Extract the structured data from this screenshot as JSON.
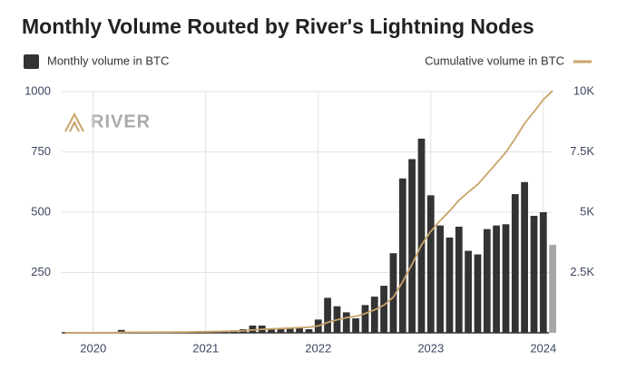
{
  "chart_data": {
    "type": "bar_line",
    "title": "Monthly Volume Routed by River's Lightning Nodes",
    "logo": "RIVER",
    "legend": "top",
    "grid": true,
    "x": [
      2019.75,
      2019.833,
      2019.917,
      2020,
      2020.083,
      2020.167,
      2020.25,
      2020.333,
      2020.417,
      2020.5,
      2020.583,
      2020.667,
      2020.75,
      2020.833,
      2020.917,
      2021,
      2021.083,
      2021.167,
      2021.25,
      2021.333,
      2021.417,
      2021.5,
      2021.583,
      2021.667,
      2021.75,
      2021.833,
      2021.917,
      2022,
      2022.083,
      2022.167,
      2022.25,
      2022.333,
      2022.417,
      2022.5,
      2022.583,
      2022.667,
      2022.75,
      2022.833,
      2022.917,
      2023,
      2023.083,
      2023.167,
      2023.25,
      2023.333,
      2023.417,
      2023.5,
      2023.583,
      2023.667,
      2023.75,
      2023.833,
      2023.917,
      2024,
      2024.083
    ],
    "xlim": [
      2019.72,
      2024.05
    ],
    "xticks": [
      2020,
      2021,
      2022,
      2023,
      2024
    ],
    "ylim": [
      0,
      1000
    ],
    "yticks": [
      250,
      500,
      750,
      1000
    ],
    "y2lim": [
      0,
      10000
    ],
    "y2ticks": [
      {
        "value": 2500,
        "label": "2.5K"
      },
      {
        "value": 5000,
        "label": "5K"
      },
      {
        "value": 7500,
        "label": "7.5K"
      },
      {
        "value": 10000,
        "label": "10K"
      }
    ],
    "series": [
      {
        "name": "Monthly volume in BTC",
        "color": "#333333",
        "colors": [
          "#333333",
          "#333333",
          "#333333",
          "#333333",
          "#333333",
          "#333333",
          "#333333",
          "#333333",
          "#333333",
          "#333333",
          "#333333",
          "#333333",
          "#333333",
          "#333333",
          "#333333",
          "#333333",
          "#333333",
          "#333333",
          "#333333",
          "#333333",
          "#333333",
          "#333333",
          "#333333",
          "#333333",
          "#333333",
          "#333333",
          "#333333",
          "#333333",
          "#333333",
          "#333333",
          "#333333",
          "#333333",
          "#333333",
          "#333333",
          "#333333",
          "#333333",
          "#333333",
          "#333333",
          "#333333",
          "#333333",
          "#333333",
          "#333333",
          "#333333",
          "#333333",
          "#333333",
          "#333333",
          "#333333",
          "#333333",
          "#333333",
          "#333333",
          "#333333",
          "#333333",
          "#a6a6a6"
        ],
        "values": [
          2,
          1,
          1,
          1,
          1,
          1,
          12,
          2,
          1,
          1,
          2,
          3,
          3,
          4,
          5,
          6,
          8,
          7,
          10,
          15,
          30,
          30,
          15,
          15,
          20,
          20,
          15,
          55,
          145,
          110,
          85,
          60,
          115,
          150,
          195,
          330,
          640,
          720,
          805,
          570,
          445,
          395,
          440,
          340,
          325,
          430,
          445,
          450,
          575,
          625,
          485,
          500,
          365
        ]
      },
      {
        "name": "Cumulative volume in BTC",
        "color": "#c9a36a",
        "axis": "y2",
        "values": [
          2,
          3,
          4,
          5,
          6,
          7,
          19,
          21,
          22,
          23,
          25,
          28,
          31,
          35,
          40,
          46,
          54,
          61,
          71,
          86,
          116,
          146,
          161,
          176,
          196,
          216,
          231,
          286,
          431,
          541,
          626,
          686,
          801,
          951,
          1146,
          1476,
          2116,
          2836,
          3641,
          4211,
          4656,
          5051,
          5491,
          5831,
          6156,
          6586,
          7031,
          7481,
          8056,
          8681,
          9166,
          9666,
          10031
        ]
      }
    ]
  }
}
